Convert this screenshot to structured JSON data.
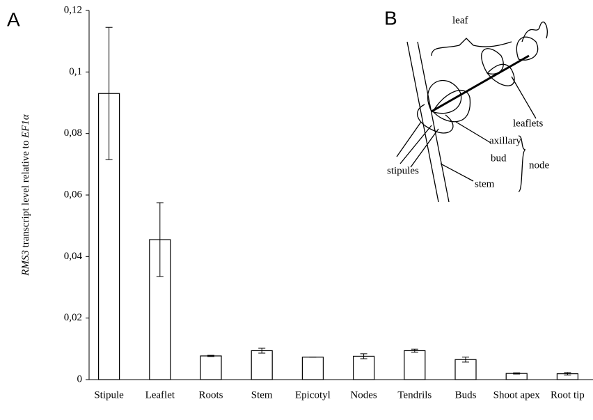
{
  "chart_data": {
    "type": "bar",
    "ylabel": [
      "RMS3",
      " transcript  level  relative  to ",
      "EF1α"
    ],
    "categories": [
      "Stipule",
      "Leaflet",
      "Roots",
      "Stem",
      "Epicotyl",
      "Nodes",
      "Tendrils",
      "Buds",
      "Shoot apex",
      "Root tip"
    ],
    "values": [
      0.093,
      0.0455,
      0.0077,
      0.0094,
      0.0073,
      0.0076,
      0.0094,
      0.0065,
      0.002,
      0.0019
    ],
    "errors": [
      0.0215,
      0.012,
      0.0002,
      0.0008,
      0,
      0.0008,
      0.0005,
      0.0008,
      0.0002,
      0.0004
    ],
    "color": "#ffffff",
    "ylim": [
      0,
      0.12
    ],
    "yticks": [
      0,
      {
        "value": 0.02,
        "label": "0,02"
      },
      {
        "value": 0.04,
        "label": "0,04"
      },
      {
        "value": 0.06,
        "label": "0,06"
      },
      {
        "value": 0.08,
        "label": "0,08"
      },
      {
        "value": 0.1,
        "label": "0,1"
      },
      {
        "value": 0.12,
        "label": "0,12"
      }
    ],
    "grid": false,
    "panel_labels": [
      "A",
      "B"
    ],
    "inset_labels": [
      "leaf",
      "leaflets",
      "axillary",
      "bud",
      "node",
      "stipules",
      "stem"
    ]
  }
}
